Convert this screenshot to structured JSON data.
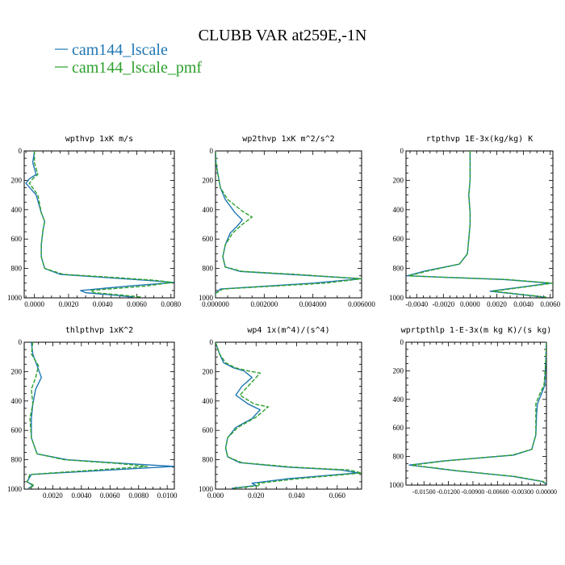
{
  "figure": {
    "title": "CLUBB VAR at259E,-1N",
    "legend": [
      {
        "name": "cam144_lscale",
        "color": "#1f77b4"
      },
      {
        "name": "cam144_lscale_pmf",
        "color": "#2ca02c"
      }
    ]
  },
  "chart_data": [
    {
      "type": "line",
      "title": "wpthvp  1xK m/s",
      "xlim": [
        -0.0006,
        0.0082
      ],
      "ylim": [
        0,
        1000
      ],
      "xticks": [
        0.0,
        0.002,
        0.004,
        0.006,
        0.008
      ],
      "xtick_labels": [
        "0.0000",
        "0.0020",
        "0.0040",
        "0.0060",
        "0.0080"
      ],
      "yticks": [
        0,
        200,
        400,
        600,
        800,
        1000
      ],
      "ytick_labels": [
        "0",
        "200",
        "400",
        "600",
        "800",
        "1000"
      ],
      "series": [
        {
          "name": "cam144_lscale",
          "color": "#1f77b4",
          "dashed": false,
          "x": [
            0.0,
            -0.0001,
            0.0001,
            -0.0003,
            -0.0005,
            0.0001,
            0.0004,
            0.0006,
            0.0005,
            0.0004,
            0.0004,
            0.0006,
            0.0015,
            0.004,
            0.0065,
            0.0082,
            0.0055,
            0.0027,
            0.003,
            0.0045,
            0.0058
          ],
          "y": [
            0,
            80,
            160,
            190,
            220,
            300,
            420,
            480,
            540,
            640,
            720,
            800,
            840,
            860,
            880,
            895,
            920,
            950,
            965,
            980,
            995
          ]
        },
        {
          "name": "cam144_lscale_pmf",
          "color": "#2ca02c",
          "dashed": true,
          "x": [
            0.0,
            0.0,
            0.0002,
            -0.0001,
            -0.0003,
            0.0002,
            0.0004,
            0.0006,
            0.0005,
            0.0004,
            0.0004,
            0.0006,
            0.0017,
            0.0045,
            0.007,
            0.0081,
            0.0065,
            0.0033,
            0.0035,
            0.005,
            0.0063
          ],
          "y": [
            0,
            80,
            160,
            190,
            220,
            300,
            420,
            480,
            540,
            640,
            720,
            800,
            840,
            860,
            880,
            895,
            920,
            950,
            965,
            980,
            995
          ]
        }
      ]
    },
    {
      "type": "line",
      "title": "wp2thvp  1xK m^2/s^2",
      "xlim": [
        0.0,
        0.006
      ],
      "ylim": [
        0,
        1000
      ],
      "xticks": [
        0.0,
        0.002,
        0.004,
        0.006
      ],
      "xtick_labels": [
        "0.000000",
        "0.002000",
        "0.004000",
        "0.006000"
      ],
      "yticks": [
        0,
        200,
        400,
        600,
        800,
        1000
      ],
      "ytick_labels": [
        "0",
        "200",
        "400",
        "600",
        "800",
        "1000"
      ],
      "series": [
        {
          "name": "cam144_lscale",
          "color": "#1f77b4",
          "dashed": false,
          "x": [
            0.0,
            2e-05,
            0.0001,
            0.0002,
            0.0004,
            0.0008,
            0.0011,
            0.0009,
            0.0006,
            0.0004,
            0.0003,
            0.0004,
            0.001,
            0.003,
            0.006,
            0.004,
            0.0002,
            0.0,
            0.0
          ],
          "y": [
            0,
            80,
            160,
            250,
            330,
            420,
            470,
            510,
            560,
            640,
            720,
            790,
            820,
            840,
            870,
            900,
            940,
            970,
            995
          ]
        },
        {
          "name": "cam144_lscale_pmf",
          "color": "#2ca02c",
          "dashed": true,
          "x": [
            0.0,
            2e-05,
            0.0001,
            0.0002,
            0.0005,
            0.0011,
            0.0015,
            0.0011,
            0.0007,
            0.0004,
            0.0003,
            0.0004,
            0.0011,
            0.0033,
            0.006,
            0.0045,
            0.0003,
            0.0,
            0.0
          ],
          "y": [
            0,
            80,
            160,
            250,
            330,
            410,
            450,
            500,
            560,
            640,
            720,
            790,
            820,
            840,
            870,
            900,
            940,
            970,
            995
          ]
        }
      ]
    },
    {
      "type": "line",
      "title": "rtpthvp  1E-3x(kg/kg) K",
      "xlim": [
        -0.0048,
        0.0062
      ],
      "ylim": [
        0,
        1000
      ],
      "xticks": [
        -0.004,
        -0.002,
        0.0,
        0.002,
        0.004,
        0.006
      ],
      "xtick_labels": [
        "-0.0040",
        "-0.0020",
        "0.0000",
        "0.0020",
        "0.0040",
        "0.0060"
      ],
      "yticks": [
        0,
        200,
        400,
        600,
        800,
        1000
      ],
      "ytick_labels": [
        "0",
        "200",
        "400",
        "600",
        "800",
        "1000"
      ],
      "series": [
        {
          "name": "cam144_lscale",
          "color": "#1f77b4",
          "dashed": false,
          "x": [
            0.0,
            0.0,
            0.0,
            -0.0001,
            0.0,
            0.0,
            -0.0002,
            -0.0008,
            -0.0035,
            -0.0047,
            -0.002,
            0.0025,
            0.006,
            0.004,
            0.0015,
            0.0025,
            0.004,
            0.0055
          ],
          "y": [
            0,
            100,
            200,
            300,
            420,
            500,
            700,
            770,
            820,
            850,
            860,
            875,
            900,
            925,
            955,
            965,
            980,
            995
          ]
        },
        {
          "name": "cam144_lscale_pmf",
          "color": "#2ca02c",
          "dashed": true,
          "x": [
            0.0,
            0.0,
            0.0,
            -0.0001,
            0.0,
            0.0,
            -0.0002,
            -0.0008,
            -0.0033,
            -0.0046,
            -0.0018,
            0.0027,
            0.0062,
            0.0042,
            0.0017,
            0.0027,
            0.0042,
            0.0057
          ],
          "y": [
            0,
            100,
            200,
            300,
            420,
            500,
            700,
            770,
            820,
            850,
            860,
            875,
            900,
            925,
            955,
            965,
            980,
            995
          ]
        }
      ]
    },
    {
      "type": "line",
      "title": "thlpthvp  1xK^2",
      "xlim": [
        0.0,
        0.0105
      ],
      "ylim": [
        0,
        1000
      ],
      "xticks": [
        0.002,
        0.004,
        0.006,
        0.008,
        0.01
      ],
      "xtick_labels": [
        "0.0020",
        "0.0040",
        "0.0060",
        "0.0080",
        "0.0100"
      ],
      "yticks": [
        0,
        200,
        400,
        600,
        800,
        1000
      ],
      "ytick_labels": [
        "0",
        "200",
        "400",
        "600",
        "800",
        "1000"
      ],
      "series": [
        {
          "name": "cam144_lscale",
          "color": "#1f77b4",
          "dashed": false,
          "x": [
            0.0005,
            0.0006,
            0.0009,
            0.0012,
            0.0008,
            0.0006,
            0.0005,
            0.0005,
            0.0009,
            0.003,
            0.007,
            0.0105,
            0.006,
            0.0005,
            0.0002,
            0.0006,
            0.0003
          ],
          "y": [
            0,
            80,
            160,
            240,
            320,
            420,
            520,
            650,
            760,
            800,
            825,
            845,
            870,
            900,
            950,
            975,
            995
          ]
        },
        {
          "name": "cam144_lscale_pmf",
          "color": "#2ca02c",
          "dashed": true,
          "x": [
            0.0006,
            0.0005,
            0.001,
            0.0008,
            0.0005,
            0.0006,
            0.0004,
            0.0005,
            0.0009,
            0.0028,
            0.0065,
            0.0086,
            0.005,
            0.0004,
            0.0002,
            0.0007,
            0.0003
          ],
          "y": [
            0,
            80,
            160,
            240,
            320,
            420,
            520,
            650,
            760,
            800,
            825,
            845,
            870,
            900,
            950,
            975,
            995
          ]
        }
      ]
    },
    {
      "type": "line",
      "title": "wp4  1x(m^4)/(s^4)",
      "xlim": [
        0.0,
        0.072
      ],
      "ylim": [
        0,
        1000
      ],
      "xticks": [
        0.0,
        0.02,
        0.04,
        0.06
      ],
      "xtick_labels": [
        "0.000",
        "0.020",
        "0.040",
        "0.060"
      ],
      "yticks": [
        0,
        200,
        400,
        600,
        800,
        1000
      ],
      "ytick_labels": [
        "0",
        "200",
        "400",
        "600",
        "800",
        "1000"
      ],
      "series": [
        {
          "name": "cam144_lscale",
          "color": "#1f77b4",
          "dashed": false,
          "x": [
            0.0,
            0.002,
            0.004,
            0.009,
            0.014,
            0.018,
            0.013,
            0.01,
            0.016,
            0.022,
            0.018,
            0.01,
            0.006,
            0.005,
            0.006,
            0.012,
            0.035,
            0.062,
            0.07,
            0.035,
            0.018,
            0.02,
            0.008
          ],
          "y": [
            0,
            80,
            140,
            175,
            195,
            240,
            300,
            360,
            420,
            460,
            520,
            580,
            650,
            720,
            780,
            820,
            850,
            870,
            890,
            930,
            960,
            975,
            995
          ]
        },
        {
          "name": "cam144_lscale_pmf",
          "color": "#2ca02c",
          "dashed": true,
          "x": [
            0.0,
            0.002,
            0.005,
            0.01,
            0.016,
            0.022,
            0.016,
            0.012,
            0.019,
            0.026,
            0.02,
            0.011,
            0.006,
            0.005,
            0.006,
            0.013,
            0.038,
            0.066,
            0.072,
            0.04,
            0.021,
            0.022,
            0.009
          ],
          "y": [
            0,
            80,
            140,
            175,
            195,
            210,
            300,
            360,
            420,
            440,
            510,
            580,
            650,
            720,
            780,
            820,
            850,
            870,
            890,
            930,
            960,
            975,
            995
          ]
        }
      ]
    },
    {
      "type": "line",
      "title": "wprtpthlp  1-E-3x(m kg K)/(s kg)",
      "xlim": [
        -0.0172,
        0.0
      ],
      "ylim": [
        0,
        1000
      ],
      "xticks": [
        -0.015,
        -0.012,
        -0.009,
        -0.006,
        -0.003,
        0.0
      ],
      "xtick_labels": [
        "-0.01500",
        "-0.01200",
        "-0.00900",
        "-0.00600",
        "-0.00300",
        "0.00000"
      ],
      "yticks": [
        0,
        200,
        400,
        600,
        800,
        1000
      ],
      "ytick_labels": [
        "0",
        "200",
        "400",
        "600",
        "800",
        "1000"
      ],
      "series": [
        {
          "name": "cam144_lscale",
          "color": "#1f77b4",
          "dashed": false,
          "x": [
            0.0,
            -0.0001,
            -0.0002,
            -0.0006,
            -0.0011,
            -0.0012,
            -0.0013,
            -0.0018,
            -0.004,
            -0.0125,
            -0.0168,
            -0.011,
            -0.004,
            -0.0005,
            0.0
          ],
          "y": [
            0,
            150,
            300,
            360,
            430,
            500,
            650,
            750,
            790,
            830,
            860,
            900,
            940,
            975,
            995
          ]
        },
        {
          "name": "cam144_lscale_pmf",
          "color": "#2ca02c",
          "dashed": true,
          "x": [
            0.0,
            -0.0001,
            -0.0003,
            -0.0008,
            -0.0013,
            -0.0013,
            -0.0013,
            -0.0018,
            -0.0042,
            -0.0122,
            -0.0165,
            -0.0108,
            -0.0038,
            -0.0004,
            0.0
          ],
          "y": [
            0,
            150,
            300,
            360,
            430,
            500,
            650,
            750,
            790,
            830,
            860,
            900,
            940,
            975,
            995
          ]
        }
      ]
    }
  ]
}
